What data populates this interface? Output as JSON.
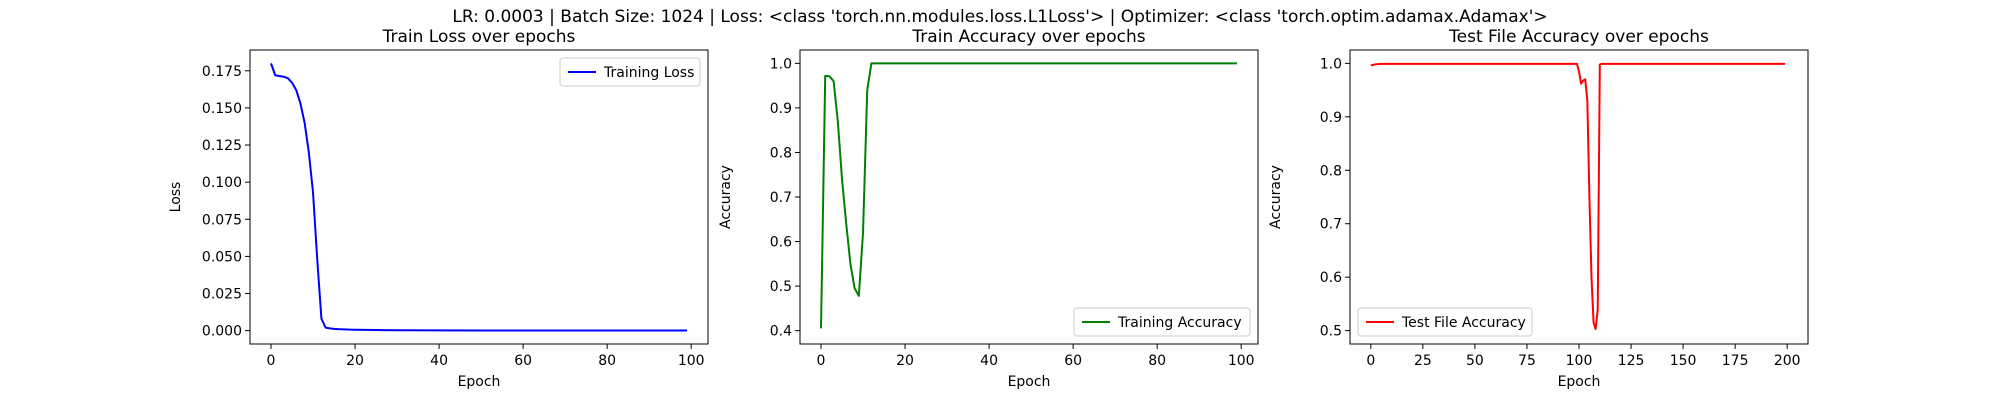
{
  "figure": {
    "suptitle": "LR: 0.0003 | Batch Size: 1024 | Loss: <class 'torch.nn.modules.loss.L1Loss'> | Optimizer: <class 'torch.optim.adamax.Adamax'>"
  },
  "chart_data": [
    {
      "type": "line",
      "title": "Train Loss over epochs",
      "xlabel": "Epoch",
      "ylabel": "Loss",
      "xlim": [
        -5,
        104
      ],
      "ylim": [
        -0.009,
        0.189
      ],
      "xticks": [
        0,
        20,
        40,
        60,
        80,
        100
      ],
      "yticks": [
        0.0,
        0.025,
        0.05,
        0.075,
        0.1,
        0.125,
        0.15,
        0.175
      ],
      "ytick_labels": [
        "0.000",
        "0.025",
        "0.050",
        "0.075",
        "0.100",
        "0.125",
        "0.150",
        "0.175"
      ],
      "legend_position": "upper right",
      "grid": false,
      "series": [
        {
          "name": "Training Loss",
          "color": "#0000ff",
          "x": [
            0,
            1,
            2,
            3,
            4,
            5,
            6,
            7,
            8,
            9,
            10,
            11,
            12,
            13,
            14,
            15,
            16,
            18,
            20,
            25,
            30,
            40,
            50,
            60,
            70,
            80,
            90,
            99
          ],
          "y": [
            0.18,
            0.172,
            0.1715,
            0.171,
            0.17,
            0.167,
            0.162,
            0.153,
            0.14,
            0.12,
            0.093,
            0.048,
            0.008,
            0.002,
            0.0015,
            0.0012,
            0.001,
            0.0008,
            0.0006,
            0.0004,
            0.0003,
            0.0002,
            0.0001,
            0.0001,
            0.0001,
            0.0001,
            0.0001,
            0.0001
          ]
        }
      ]
    },
    {
      "type": "line",
      "title": "Train Accuracy over epochs",
      "xlabel": "Epoch",
      "ylabel": "Accuracy",
      "xlim": [
        -5,
        104
      ],
      "ylim": [
        0.37,
        1.03
      ],
      "xticks": [
        0,
        20,
        40,
        60,
        80,
        100
      ],
      "yticks": [
        0.4,
        0.5,
        0.6,
        0.7,
        0.8,
        0.9,
        1.0
      ],
      "ytick_labels": [
        "0.4",
        "0.5",
        "0.6",
        "0.7",
        "0.8",
        "0.9",
        "1.0"
      ],
      "legend_position": "lower right",
      "grid": false,
      "series": [
        {
          "name": "Training Accuracy",
          "color": "#008000",
          "x": [
            0,
            1,
            2,
            3,
            4,
            5,
            6,
            7,
            8,
            9,
            10,
            11,
            12,
            13,
            20,
            40,
            60,
            80,
            99
          ],
          "y": [
            0.405,
            0.972,
            0.971,
            0.96,
            0.87,
            0.74,
            0.64,
            0.55,
            0.495,
            0.478,
            0.62,
            0.94,
            1.0,
            1.0,
            1.0,
            1.0,
            1.0,
            1.0,
            1.0
          ]
        }
      ]
    },
    {
      "type": "line",
      "title": "Test File Accuracy over epochs",
      "xlabel": "Epoch",
      "ylabel": "Accuracy",
      "xlim": [
        -10,
        210
      ],
      "ylim": [
        0.475,
        1.025
      ],
      "xticks": [
        0,
        25,
        50,
        75,
        100,
        125,
        150,
        175,
        200
      ],
      "yticks": [
        0.5,
        0.6,
        0.7,
        0.8,
        0.9,
        1.0
      ],
      "ytick_labels": [
        "0.5",
        "0.6",
        "0.7",
        "0.8",
        "0.9",
        "1.0"
      ],
      "legend_position": "lower left",
      "grid": false,
      "series": [
        {
          "name": "Test File Accuracy",
          "color": "#ff0000",
          "x": [
            0,
            2,
            5,
            10,
            20,
            50,
            99,
            100,
            101,
            102,
            103,
            104,
            105,
            106,
            107,
            108,
            109,
            110,
            111,
            112,
            113,
            150,
            199
          ],
          "y": [
            0.996,
            0.998,
            0.999,
            0.999,
            0.999,
            0.999,
            0.999,
            0.985,
            0.962,
            0.968,
            0.97,
            0.93,
            0.75,
            0.6,
            0.515,
            0.503,
            0.54,
            0.998,
            0.999,
            0.999,
            0.999,
            0.999,
            0.999
          ]
        }
      ]
    }
  ]
}
